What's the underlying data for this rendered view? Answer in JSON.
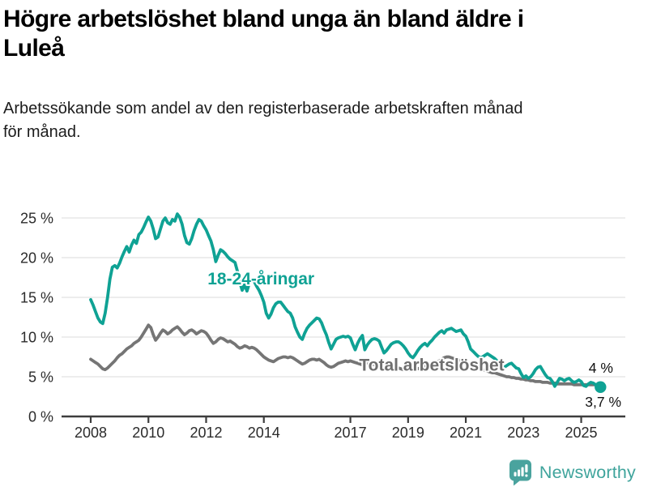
{
  "header": {
    "title": "Högre arbetslöshet bland unga än bland äldre i Luleå",
    "subtitle": "Arbetssökande som andel av den registerbaserade arbetskraften månad för månad."
  },
  "footer": {
    "brand": "Newsworthy"
  },
  "chart_data": {
    "type": "line",
    "title": "Högre arbetslöshet bland unga än bland äldre i Luleå",
    "subtitle": "Arbetssökande som andel av den registerbaserade arbetskraften månad för månad.",
    "x_unit": "monthly, Jan 2008 – Sep 2025",
    "x_start": 2008,
    "points_per_year": 12,
    "xticks": [
      2008,
      2010,
      2012,
      2014,
      2017,
      2019,
      2021,
      2023,
      2025
    ],
    "yticks": [
      0,
      5,
      10,
      15,
      20,
      25
    ],
    "ytick_suffix": " %",
    "ylim": [
      0,
      27
    ],
    "grid": "horizontal",
    "legend_position": "inline-labels",
    "colors": {
      "grid": "#e2e2e2",
      "axis": "#3d3d3d",
      "axis_text": "#2b2b2b",
      "annotation_text": "#111111",
      "background": "#ffffff"
    },
    "series": [
      {
        "id": "youth",
        "name": "18-24-åringar",
        "color": "#0fa294",
        "label_color": "#0fa294",
        "label": {
          "year": 2013.9,
          "value": 17.35
        },
        "end_label": "3,7 %",
        "end_label_position": "below",
        "end_dot": true,
        "values": [
          14.7,
          14.0,
          13.2,
          12.4,
          11.9,
          11.7,
          13.0,
          15.0,
          17.3,
          18.8,
          19.0,
          18.7,
          19.3,
          20.1,
          20.8,
          21.4,
          20.7,
          21.6,
          22.2,
          21.8,
          22.9,
          23.2,
          23.8,
          24.5,
          25.1,
          24.6,
          23.6,
          22.4,
          22.6,
          23.6,
          24.6,
          25.0,
          24.4,
          24.2,
          24.8,
          24.6,
          25.5,
          25.1,
          24.2,
          22.8,
          21.9,
          21.7,
          22.4,
          23.4,
          24.2,
          24.8,
          24.6,
          24.0,
          23.5,
          22.8,
          22.1,
          21.0,
          19.5,
          20.3,
          21.0,
          20.8,
          20.5,
          20.1,
          19.8,
          19.6,
          19.4,
          18.3,
          16.9,
          15.9,
          16.6,
          15.8,
          16.8,
          17.3,
          17.0,
          16.4,
          15.9,
          15.2,
          14.4,
          13.0,
          12.4,
          12.9,
          13.7,
          14.2,
          14.4,
          14.4,
          14.0,
          13.6,
          13.2,
          13.0,
          12.4,
          11.3,
          10.6,
          10.0,
          9.7,
          10.5,
          11.1,
          11.5,
          11.8,
          12.1,
          12.4,
          12.3,
          11.8,
          11.0,
          10.3,
          9.3,
          8.5,
          9.1,
          9.7,
          9.9,
          10.0,
          10.1,
          10.0,
          10.1,
          9.9,
          9.1,
          8.4,
          9.2,
          9.8,
          10.2,
          8.4,
          9.0,
          9.4,
          9.7,
          9.8,
          9.7,
          9.5,
          8.7,
          8.0,
          8.3,
          8.7,
          9.1,
          9.3,
          9.4,
          9.4,
          9.2,
          8.9,
          8.5,
          8.0,
          7.6,
          7.4,
          7.8,
          8.3,
          8.7,
          9.0,
          9.2,
          8.9,
          9.3,
          9.6,
          10.0,
          10.3,
          10.6,
          10.8,
          10.5,
          10.9,
          11.0,
          11.1,
          10.9,
          10.7,
          10.8,
          10.9,
          10.4,
          10.1,
          9.4,
          8.5,
          8.2,
          7.9,
          7.6,
          7.4,
          7.5,
          7.7,
          7.9,
          7.7,
          7.5,
          7.3,
          7.0,
          6.7,
          6.4,
          6.2,
          6.4,
          6.6,
          6.7,
          6.4,
          6.1,
          6.0,
          5.4,
          4.9,
          5.1,
          4.8,
          5.0,
          5.4,
          5.9,
          6.2,
          6.3,
          5.8,
          5.3,
          4.9,
          4.8,
          4.4,
          3.8,
          4.3,
          4.8,
          4.7,
          4.5,
          4.7,
          4.8,
          4.5,
          4.3,
          4.4,
          4.6,
          4.4,
          3.9,
          3.8,
          4.1,
          4.3,
          4.2,
          4.0,
          3.8,
          3.7
        ]
      },
      {
        "id": "total",
        "name": "Total arbetslöshet",
        "color": "#757575",
        "label_color": "#6e6e6e",
        "label": {
          "year": 2019.82,
          "value": 6.5
        },
        "end_label": "4 %",
        "end_label_position": "above",
        "end_dot": false,
        "values": [
          7.2,
          7.0,
          6.8,
          6.6,
          6.3,
          6.0,
          5.9,
          6.1,
          6.4,
          6.7,
          7.0,
          7.4,
          7.7,
          7.9,
          8.2,
          8.5,
          8.7,
          8.9,
          9.2,
          9.4,
          9.6,
          10.0,
          10.5,
          11.0,
          11.5,
          11.2,
          10.3,
          9.6,
          10.0,
          10.5,
          10.9,
          10.7,
          10.4,
          10.6,
          10.9,
          11.1,
          11.3,
          11.0,
          10.6,
          10.3,
          10.5,
          10.8,
          10.9,
          10.7,
          10.4,
          10.6,
          10.8,
          10.7,
          10.5,
          10.1,
          9.6,
          9.2,
          9.4,
          9.7,
          9.9,
          9.8,
          9.6,
          9.4,
          9.5,
          9.3,
          9.1,
          8.8,
          8.6,
          8.7,
          8.9,
          8.8,
          8.6,
          8.7,
          8.6,
          8.4,
          8.1,
          7.8,
          7.5,
          7.3,
          7.1,
          7.0,
          6.9,
          7.1,
          7.3,
          7.4,
          7.5,
          7.5,
          7.4,
          7.5,
          7.4,
          7.2,
          7.0,
          6.8,
          6.6,
          6.7,
          6.9,
          7.1,
          7.2,
          7.2,
          7.1,
          7.2,
          7.0,
          6.8,
          6.5,
          6.3,
          6.2,
          6.3,
          6.5,
          6.7,
          6.8,
          6.9,
          7.0,
          6.9,
          7.0,
          6.9,
          6.8,
          6.7,
          6.6,
          6.5,
          6.6,
          6.7,
          6.7,
          6.6,
          6.5,
          6.4,
          6.3,
          6.2,
          6.1,
          6.0,
          5.9,
          6.0,
          6.1,
          6.2,
          6.1,
          6.0,
          5.9,
          5.9,
          5.9,
          5.8,
          5.8,
          5.9,
          6.0,
          6.1,
          6.2,
          6.3,
          6.3,
          6.4,
          6.5,
          6.6,
          6.8,
          7.0,
          7.2,
          7.4,
          7.5,
          7.5,
          7.4,
          7.3,
          7.2,
          7.1,
          7.0,
          6.9,
          6.8,
          6.7,
          6.5,
          6.4,
          6.2,
          6.1,
          6.0,
          5.9,
          5.8,
          5.7,
          5.6,
          5.5,
          5.5,
          5.4,
          5.3,
          5.2,
          5.1,
          5.0,
          5.0,
          4.9,
          4.9,
          4.8,
          4.8,
          4.7,
          4.7,
          4.6,
          4.6,
          4.5,
          4.5,
          4.4,
          4.4,
          4.4,
          4.3,
          4.3,
          4.3,
          4.2,
          4.2,
          4.2,
          4.1,
          4.1,
          4.1,
          4.1,
          4.1,
          4.1,
          4.1,
          4.0,
          4.0,
          4.0,
          4.0,
          4.0,
          4.0,
          4.0,
          4.0,
          4.0,
          4.0,
          4.0,
          4.0
        ]
      }
    ]
  }
}
